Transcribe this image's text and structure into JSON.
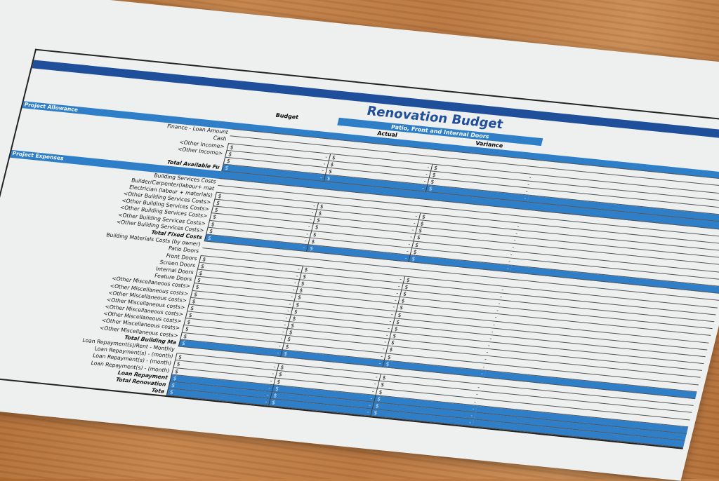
{
  "document": {
    "title": "Renovation Budget",
    "subtitle": "Patio, Front and Internal Doors",
    "columns": [
      "Budget",
      "Actual",
      "Variance"
    ],
    "currency_symbol": "$",
    "empty_value": "-",
    "colors": {
      "dark_blue": "#1f4e9a",
      "blue": "#2f7fc8",
      "paper": "#eef0f0"
    },
    "rows": [
      {
        "label": "Project Allowance",
        "kind": "section"
      },
      {
        "label": "Finance - Loan Amount",
        "kind": "plain"
      },
      {
        "label": "Cash",
        "kind": "plain"
      },
      {
        "label": "<Other Income>",
        "kind": "item"
      },
      {
        "label": "<Other Income>",
        "kind": "item"
      },
      {
        "label": "",
        "kind": "item"
      },
      {
        "label": "Total Available Fu",
        "kind": "total"
      },
      {
        "label": "Project Expenses",
        "kind": "section"
      },
      {
        "label": "Building Services Costs",
        "kind": "plain"
      },
      {
        "label": "Builder/Carpenter(labour+ mat",
        "kind": "plain"
      },
      {
        "label": "Electrician (labour + materials)",
        "kind": "item"
      },
      {
        "label": "<Other Building Services Costs>",
        "kind": "item"
      },
      {
        "label": "<Other Building Services Costs>",
        "kind": "item"
      },
      {
        "label": "<Other Building Services Costs>",
        "kind": "item"
      },
      {
        "label": "<Other Building Services Costs>",
        "kind": "item"
      },
      {
        "label": "<Other Building Services Costs>",
        "kind": "item"
      },
      {
        "label": "Total Fixed Costs",
        "kind": "total"
      },
      {
        "label": "Building Materials Costs (by owner)",
        "kind": "plain"
      },
      {
        "label": "Patio Doors",
        "kind": "plain"
      },
      {
        "label": "Front Doors",
        "kind": "item"
      },
      {
        "label": "Screen Doors",
        "kind": "item"
      },
      {
        "label": "Internal Doors",
        "kind": "item"
      },
      {
        "label": "Feature Doors",
        "kind": "item"
      },
      {
        "label": "<Other Miscellaneous costs>",
        "kind": "item"
      },
      {
        "label": "<Other Miscellaneous costs>",
        "kind": "item"
      },
      {
        "label": "<Other Miscellaneous costs>",
        "kind": "item"
      },
      {
        "label": "<Other Miscellaneous costs>",
        "kind": "item"
      },
      {
        "label": "<Other Miscellaneous costs>",
        "kind": "item"
      },
      {
        "label": "<Other Miscellaneous costs>",
        "kind": "item"
      },
      {
        "label": "<Other Miscellaneous costs>",
        "kind": "item"
      },
      {
        "label": "<Other Miscellaneous costs>",
        "kind": "item"
      },
      {
        "label": "Total Building Ma",
        "kind": "total"
      },
      {
        "label": "Loan Repayment(s)/Rent - Monthly",
        "kind": "plain"
      },
      {
        "label": "Loan Repayment(s) - (month)",
        "kind": "item"
      },
      {
        "label": "Loan Repayment(s) - (month)",
        "kind": "item"
      },
      {
        "label": "Loan Repayment(s) - (month)",
        "kind": "item"
      },
      {
        "label": "Loan Repayment",
        "kind": "total"
      },
      {
        "label": "Total Renovation",
        "kind": "total"
      },
      {
        "label": "Tota",
        "kind": "total"
      }
    ]
  }
}
